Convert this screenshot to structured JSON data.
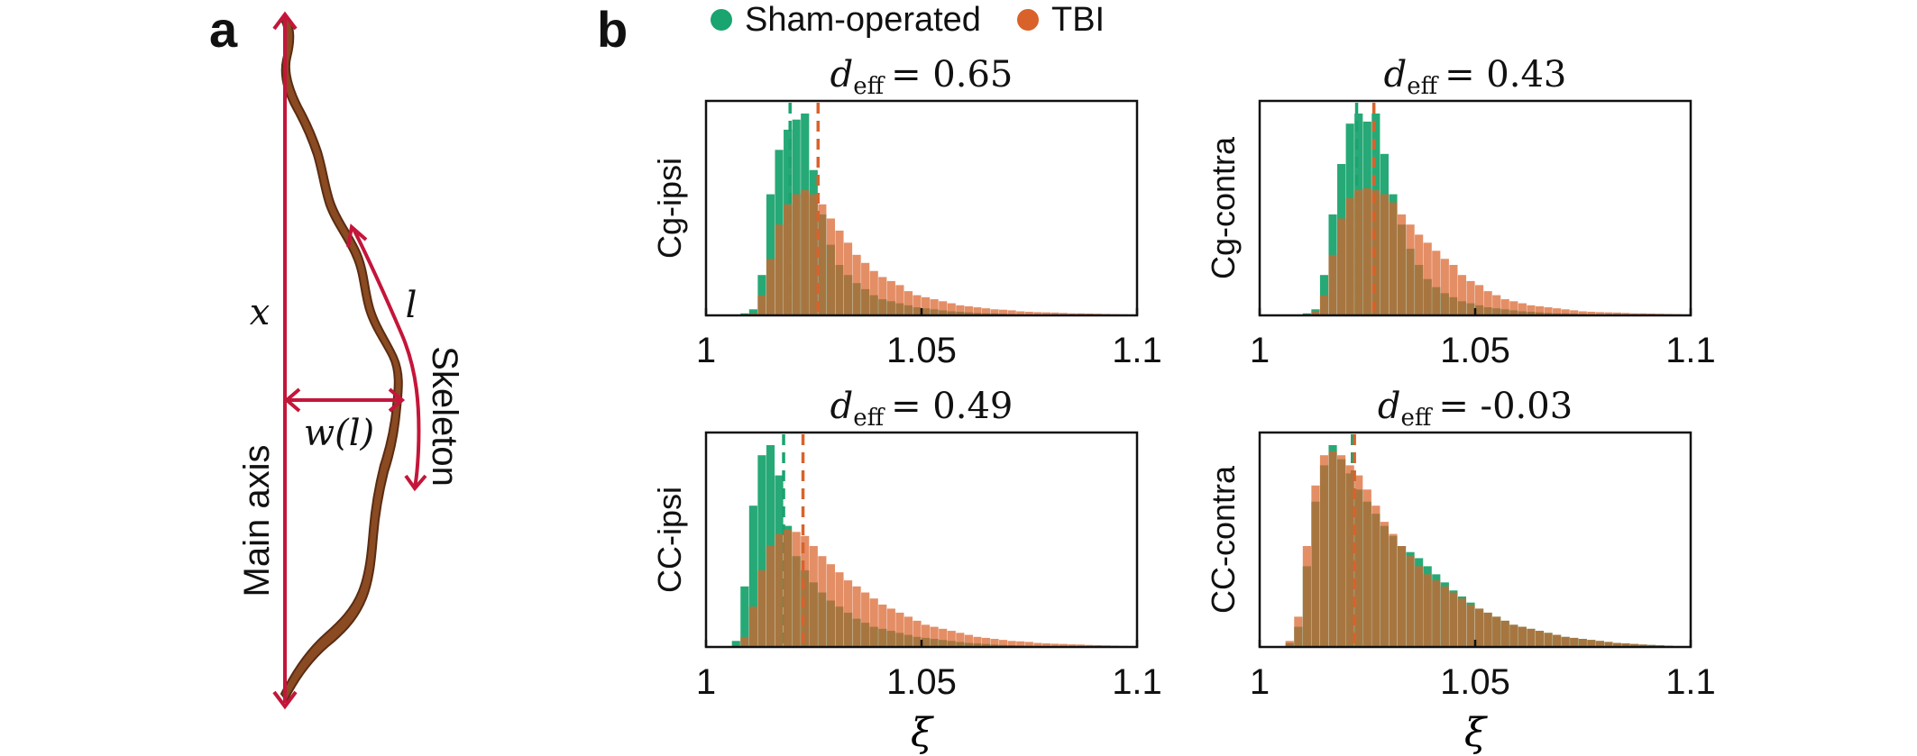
{
  "figure": {
    "panel_a_letter": "a",
    "panel_b_letter": "b"
  },
  "panel_a": {
    "label_x": "x",
    "label_l": "l",
    "label_w": "w(l)",
    "label_skeleton": "Skeleton",
    "label_main_axis": "Main axis",
    "axis_color": "#c4163a",
    "fiber_color": "#8a4a22"
  },
  "legend": {
    "items": [
      {
        "name": "Sham-operated",
        "color": "#1aa46f"
      },
      {
        "name": "TBI",
        "color": "#d9622b"
      }
    ]
  },
  "colors": {
    "sham": "#1aa46f",
    "tbi": "#d9622b",
    "overlap": "#8a6a2a"
  },
  "chart_data": [
    {
      "type": "bar",
      "title_symbol": "d",
      "title_subscript": "eff",
      "title_value": "= 0.65",
      "ylabel": "Cg-ipsi",
      "xlabel": "",
      "xlim": [
        1,
        1.1
      ],
      "xticks": [
        "1",
        "1.05",
        "1.1"
      ],
      "bin_start": 1.0,
      "bin_width": 0.002,
      "series": [
        {
          "name": "Sham-operated",
          "values": [
            0,
            0,
            0,
            0,
            0.01,
            0.03,
            0.2,
            0.6,
            0.82,
            0.92,
            0.97,
            1.0,
            0.72,
            0.5,
            0.35,
            0.25,
            0.2,
            0.16,
            0.13,
            0.1,
            0.08,
            0.07,
            0.06,
            0.05,
            0.04,
            0.035,
            0.03,
            0.025,
            0.02,
            0.018,
            0.015,
            0.012,
            0.01,
            0.01,
            0.008,
            0.006,
            0.005,
            0.004,
            0.003,
            0.003,
            0.002,
            0.002,
            0.002,
            0.001,
            0.001,
            0.001,
            0.001,
            0.001,
            0.001,
            0
          ],
          "mean": 1.0195
        },
        {
          "name": "TBI",
          "values": [
            0,
            0,
            0,
            0,
            0,
            0.01,
            0.1,
            0.28,
            0.45,
            0.55,
            0.6,
            0.62,
            0.6,
            0.55,
            0.48,
            0.42,
            0.36,
            0.3,
            0.26,
            0.22,
            0.19,
            0.17,
            0.15,
            0.12,
            0.1,
            0.09,
            0.08,
            0.07,
            0.06,
            0.05,
            0.045,
            0.04,
            0.035,
            0.03,
            0.028,
            0.025,
            0.02,
            0.018,
            0.016,
            0.015,
            0.014,
            0.012,
            0.01,
            0.01,
            0.009,
            0.008,
            0.007,
            0.006,
            0.005,
            0.004
          ],
          "mean": 1.026
        }
      ]
    },
    {
      "type": "bar",
      "title_symbol": "d",
      "title_subscript": "eff",
      "title_value": "= 0.43",
      "ylabel": "Cg-contra",
      "xlabel": "",
      "xlim": [
        1,
        1.1
      ],
      "xticks": [
        "1",
        "1.05",
        "1.1"
      ],
      "bin_start": 1.0,
      "bin_width": 0.002,
      "series": [
        {
          "name": "Sham-operated",
          "values": [
            0,
            0,
            0,
            0,
            0,
            0.01,
            0.03,
            0.2,
            0.5,
            0.75,
            0.95,
            1.0,
            0.96,
            1.0,
            0.8,
            0.6,
            0.45,
            0.33,
            0.25,
            0.18,
            0.14,
            0.11,
            0.09,
            0.07,
            0.06,
            0.05,
            0.04,
            0.035,
            0.03,
            0.025,
            0.02,
            0.018,
            0.015,
            0.012,
            0.01,
            0.01,
            0.008,
            0.006,
            0.005,
            0.004,
            0.003,
            0.003,
            0.002,
            0.002,
            0.001,
            0.001,
            0.001,
            0.001,
            0.001,
            0
          ],
          "mean": 1.0225
        },
        {
          "name": "TBI",
          "values": [
            0,
            0,
            0,
            0,
            0,
            0,
            0.02,
            0.1,
            0.3,
            0.48,
            0.58,
            0.62,
            0.63,
            0.62,
            0.6,
            0.56,
            0.5,
            0.45,
            0.4,
            0.36,
            0.32,
            0.28,
            0.25,
            0.2,
            0.17,
            0.15,
            0.12,
            0.1,
            0.08,
            0.07,
            0.06,
            0.05,
            0.045,
            0.04,
            0.035,
            0.03,
            0.025,
            0.02,
            0.018,
            0.016,
            0.015,
            0.014,
            0.012,
            0.01,
            0.01,
            0.009,
            0.008,
            0.007,
            0.006,
            0.005
          ],
          "mean": 1.0265
        }
      ]
    },
    {
      "type": "bar",
      "title_symbol": "d",
      "title_subscript": "eff",
      "title_value": "= 0.49",
      "ylabel": "CC-ipsi",
      "xlabel": "ξ",
      "xlim": [
        1,
        1.1
      ],
      "xticks": [
        "1",
        "1.05",
        "1.1"
      ],
      "bin_start": 1.0,
      "bin_width": 0.002,
      "series": [
        {
          "name": "Sham-operated",
          "values": [
            0,
            0,
            0,
            0.03,
            0.3,
            0.7,
            0.95,
            1.0,
            0.85,
            0.6,
            0.45,
            0.38,
            0.32,
            0.27,
            0.23,
            0.2,
            0.17,
            0.14,
            0.12,
            0.1,
            0.09,
            0.08,
            0.07,
            0.06,
            0.05,
            0.045,
            0.04,
            0.035,
            0.03,
            0.025,
            0.02,
            0.018,
            0.015,
            0.012,
            0.01,
            0.009,
            0.008,
            0.007,
            0.006,
            0.005,
            0.004,
            0.003,
            0.003,
            0.002,
            0.002,
            0.001,
            0.001,
            0.001,
            0.001,
            0
          ],
          "mean": 1.018
        },
        {
          "name": "TBI",
          "values": [
            0,
            0,
            0,
            0,
            0.05,
            0.2,
            0.38,
            0.5,
            0.56,
            0.58,
            0.57,
            0.55,
            0.5,
            0.45,
            0.41,
            0.37,
            0.33,
            0.3,
            0.27,
            0.24,
            0.21,
            0.19,
            0.17,
            0.15,
            0.13,
            0.11,
            0.1,
            0.09,
            0.08,
            0.07,
            0.06,
            0.05,
            0.045,
            0.04,
            0.035,
            0.03,
            0.028,
            0.025,
            0.02,
            0.018,
            0.016,
            0.015,
            0.013,
            0.012,
            0.01,
            0.009,
            0.008,
            0.007,
            0.006,
            0.005
          ],
          "mean": 1.0225
        }
      ]
    },
    {
      "type": "bar",
      "title_symbol": "d",
      "title_subscript": "eff",
      "title_value": "= -0.03",
      "ylabel": "CC-contra",
      "xlabel": "ξ",
      "xlim": [
        1,
        1.1
      ],
      "xticks": [
        "1",
        "1.05",
        "1.1"
      ],
      "bin_start": 1.0,
      "bin_width": 0.002,
      "series": [
        {
          "name": "Sham-operated",
          "values": [
            0,
            0,
            0,
            0.02,
            0.1,
            0.4,
            0.72,
            0.9,
            1.0,
            0.93,
            0.86,
            0.78,
            0.72,
            0.66,
            0.6,
            0.55,
            0.5,
            0.47,
            0.44,
            0.4,
            0.36,
            0.32,
            0.28,
            0.25,
            0.22,
            0.19,
            0.17,
            0.15,
            0.13,
            0.11,
            0.1,
            0.09,
            0.08,
            0.07,
            0.06,
            0.05,
            0.045,
            0.04,
            0.035,
            0.03,
            0.025,
            0.02,
            0.018,
            0.015,
            0.012,
            0.01,
            0.008,
            0.006,
            0.004,
            0.002
          ],
          "mean": 1.0215
        },
        {
          "name": "TBI",
          "values": [
            0,
            0,
            0,
            0.03,
            0.15,
            0.5,
            0.8,
            0.95,
            0.97,
            0.95,
            0.9,
            0.85,
            0.78,
            0.7,
            0.62,
            0.56,
            0.5,
            0.45,
            0.4,
            0.36,
            0.33,
            0.3,
            0.27,
            0.24,
            0.21,
            0.19,
            0.17,
            0.15,
            0.13,
            0.11,
            0.1,
            0.09,
            0.08,
            0.07,
            0.06,
            0.05,
            0.045,
            0.04,
            0.035,
            0.03,
            0.025,
            0.02,
            0.018,
            0.015,
            0.012,
            0.01,
            0.008,
            0.006,
            0.004,
            0.002
          ],
          "mean": 1.022
        }
      ]
    }
  ]
}
